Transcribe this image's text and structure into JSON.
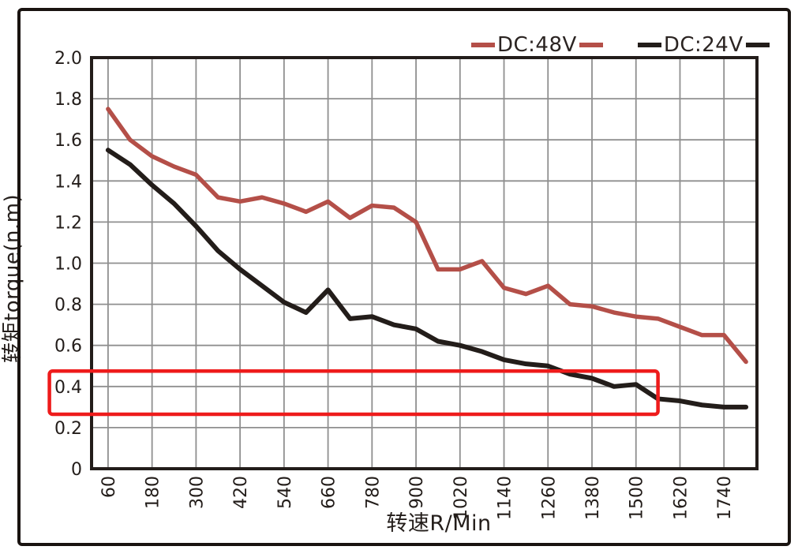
{
  "legend": {
    "items": [
      {
        "label": "DC:48V",
        "color": "#b44f48"
      },
      {
        "label": "DC:24V",
        "color": "#231d1a"
      }
    ]
  },
  "chart_data": {
    "type": "line",
    "title": "",
    "xlabel": "转速R/Min",
    "ylabel": "转矩torque(n.m)",
    "xlim": [
      15,
      1830
    ],
    "ylim": [
      0,
      2.0
    ],
    "grid": true,
    "grid_color": "#8f8f8f",
    "axis_color": "#231d1a",
    "legend_position": "top-right",
    "x_ticks": [
      60,
      180,
      300,
      420,
      540,
      660,
      780,
      900,
      1020,
      1140,
      1260,
      1380,
      1500,
      1620,
      1740
    ],
    "y_tick_values": [
      0,
      0.2,
      0.4,
      0.6,
      0.8,
      1.0,
      1.2,
      1.4,
      1.6,
      1.8,
      2.0
    ],
    "y_tick_labels": [
      "0",
      "0.2",
      "0.4",
      "0.6",
      "0.8",
      "1.0",
      "1.2",
      "1.4",
      "1.6",
      "1.8",
      "2.0"
    ],
    "x": [
      60,
      120,
      180,
      240,
      300,
      360,
      420,
      480,
      540,
      600,
      660,
      720,
      780,
      840,
      900,
      960,
      1020,
      1080,
      1140,
      1200,
      1260,
      1320,
      1380,
      1440,
      1500,
      1560,
      1620,
      1680,
      1740,
      1800
    ],
    "series": [
      {
        "name": "DC:48V",
        "color": "#b44f48",
        "values": [
          1.75,
          1.6,
          1.52,
          1.47,
          1.43,
          1.32,
          1.3,
          1.32,
          1.29,
          1.25,
          1.3,
          1.22,
          1.28,
          1.27,
          1.2,
          0.97,
          0.97,
          1.01,
          0.88,
          0.85,
          0.89,
          0.8,
          0.79,
          0.76,
          0.74,
          0.73,
          0.69,
          0.65,
          0.65,
          0.52
        ]
      },
      {
        "name": "DC:24V",
        "color": "#231d1a",
        "values": [
          1.55,
          1.48,
          1.38,
          1.29,
          1.18,
          1.06,
          0.97,
          0.89,
          0.81,
          0.76,
          0.87,
          0.73,
          0.74,
          0.7,
          0.68,
          0.62,
          0.6,
          0.57,
          0.53,
          0.51,
          0.5,
          0.46,
          0.44,
          0.4,
          0.41,
          0.34,
          0.33,
          0.31,
          0.3,
          0.3
        ]
      }
    ],
    "highlight_box": {
      "color": "#ee1b1b",
      "x_min": -100,
      "x_max": 1560,
      "y_min": 0.265,
      "y_max": 0.475
    }
  }
}
